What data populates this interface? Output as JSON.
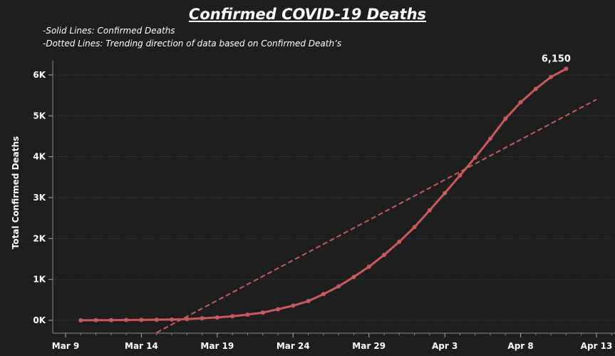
{
  "chart_data": {
    "type": "line",
    "title": "Confirmed COVID-19 Deaths",
    "notes": [
      "-Solid Lines: Confirmed Deaths",
      "-Dotted Lines: Trending direction of data based on Confirmed Death’s"
    ],
    "ylabel": "Total Confirmed Deaths",
    "xlabel": "",
    "x_ticks": [
      "Mar 9",
      "Mar 14",
      "Mar 19",
      "Mar 24",
      "Mar 29",
      "Apr 3",
      "Apr 8",
      "Apr 13"
    ],
    "y_ticks": [
      "0K",
      "1K",
      "2K",
      "3K",
      "4K",
      "5K",
      "6K"
    ],
    "ylim": [
      -300,
      6600
    ],
    "grid": true,
    "series": [
      {
        "style": "solid",
        "x": [
          "Mar 10",
          "Mar 11",
          "Mar 12",
          "Mar 13",
          "Mar 14",
          "Mar 15",
          "Mar 16",
          "Mar 17",
          "Mar 18",
          "Mar 19",
          "Mar 20",
          "Mar 21",
          "Mar 22",
          "Mar 23",
          "Mar 24",
          "Mar 25",
          "Mar 26",
          "Mar 27",
          "Mar 28",
          "Mar 29",
          "Mar 30",
          "Mar 31",
          "Apr 1",
          "Apr 2",
          "Apr 3",
          "Apr 4",
          "Apr 5",
          "Apr 6",
          "Apr 7",
          "Apr 8",
          "Apr 9",
          "Apr 10",
          "Apr 11"
        ],
        "values": [
          1,
          3,
          5,
          8,
          10,
          15,
          20,
          30,
          50,
          70,
          100,
          140,
          190,
          270,
          360,
          470,
          640,
          830,
          1060,
          1310,
          1600,
          1920,
          2280,
          2690,
          3110,
          3540,
          3980,
          4440,
          4930,
          5330,
          5660,
          5950,
          6150
        ]
      },
      {
        "style": "dashed",
        "name": "",
        "x": [
          "Mar 15",
          "Apr 13"
        ],
        "values": [
          -300,
          5400
        ]
      }
    ],
    "annotations": [
      {
        "x": "Apr 11",
        "y": 6150,
        "text": "6,150"
      }
    ],
    "colors": {
      "line": "#c85a5e",
      "background": "#1e1e1e",
      "grid": "#4a4a4a"
    }
  }
}
